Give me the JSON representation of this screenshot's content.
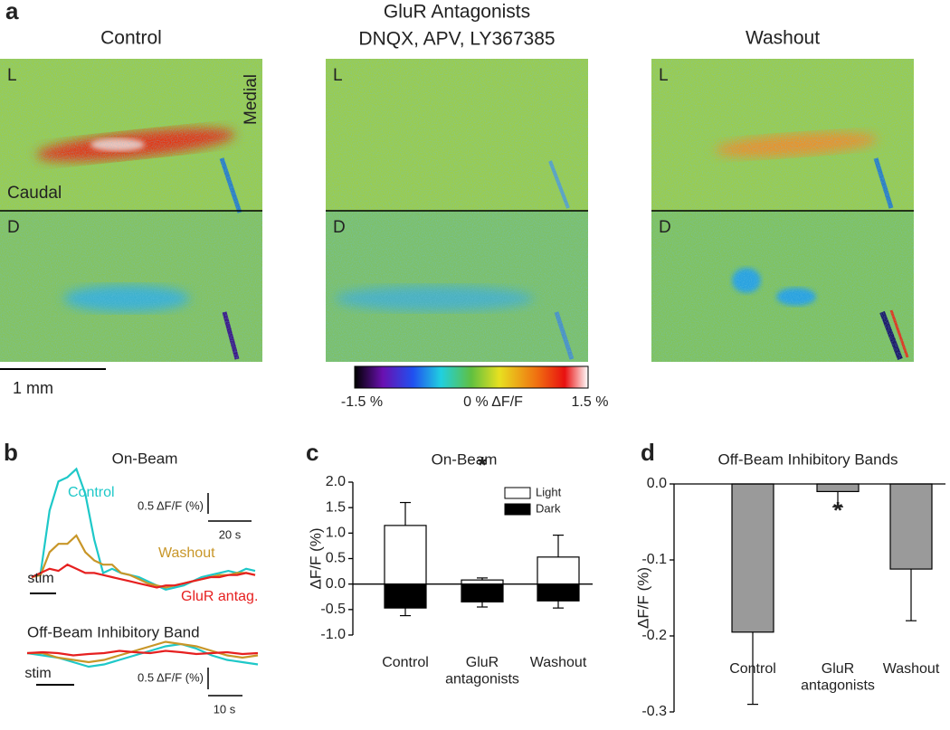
{
  "panel_labels": [
    "a",
    "b",
    "c",
    "d"
  ],
  "panel_a": {
    "titles": [
      [
        "Control"
      ],
      [
        "GluR Antagonists",
        "DNQX, APV, LY367385"
      ],
      [
        "Washout"
      ]
    ],
    "image_labels": {
      "top": "L",
      "bottom": "D",
      "medial": "Medial",
      "caudal": "Caudal"
    },
    "scale_bar": "1 mm",
    "colorbar": {
      "min": "-1.5 %",
      "mid": "0 % ΔF/F",
      "max": "1.5 %"
    }
  },
  "chart_data": [
    {
      "type": "line",
      "title": "On-Beam",
      "stim_label": "stim",
      "scale_y_label": "0.5 ΔF/F (%)",
      "scale_x_label": "20 s",
      "series": [
        {
          "name": "Control",
          "color": "#1ec8c8",
          "values": [
            0,
            0.1,
            1.6,
            2.3,
            2.4,
            2.6,
            2.0,
            0.9,
            0.1,
            0.2,
            0.1,
            0.05,
            0,
            -0.1,
            -0.2,
            -0.3,
            -0.25,
            -0.2,
            -0.1,
            0,
            0.05,
            0.1,
            0.15,
            0.1,
            0.2,
            0.15
          ]
        },
        {
          "name": "Washout",
          "color": "#c89628",
          "values": [
            0,
            0.05,
            0.6,
            0.8,
            0.8,
            1.0,
            0.6,
            0.4,
            0.3,
            0.3,
            0.1,
            0.05,
            -0.05,
            -0.15,
            -0.2,
            -0.25,
            -0.2,
            -0.15,
            -0.1,
            -0.05,
            0,
            0.05,
            0.05,
            0.1,
            0.1,
            0.05
          ]
        },
        {
          "name": "GluR antag.",
          "color": "#e62020",
          "values": [
            0,
            0.1,
            0.2,
            0.15,
            0.3,
            0.2,
            0.1,
            0.1,
            0.05,
            0,
            -0.05,
            -0.1,
            -0.15,
            -0.2,
            -0.25,
            -0.2,
            -0.2,
            -0.15,
            -0.1,
            -0.05,
            0,
            0,
            0.05,
            0.05,
            0.1,
            0.05
          ]
        }
      ]
    },
    {
      "type": "line",
      "title": "Off-Beam Inhibitory Band",
      "stim_label": "stim",
      "scale_y_label": "0.5 ΔF/F (%)",
      "scale_x_label": "10 s",
      "series": [
        {
          "color": "#1ec8c8",
          "values": [
            0,
            -0.05,
            -0.1,
            -0.2,
            -0.3,
            -0.25,
            -0.15,
            -0.05,
            0.05,
            0.15,
            0.2,
            0.1,
            -0.05,
            -0.15,
            -0.2,
            -0.25
          ]
        },
        {
          "color": "#c89628",
          "values": [
            0,
            0,
            -0.1,
            -0.15,
            -0.2,
            -0.15,
            -0.05,
            0.05,
            0.15,
            0.25,
            0.2,
            0.15,
            0.05,
            -0.05,
            -0.1,
            -0.05
          ]
        },
        {
          "color": "#e62020",
          "values": [
            0,
            0.02,
            0,
            -0.05,
            -0.02,
            0,
            0.05,
            0.02,
            0,
            0.05,
            0.02,
            -0.02,
            0,
            0.02,
            -0.02,
            0
          ]
        }
      ]
    },
    {
      "type": "bar",
      "title": "On-Beam",
      "ylabel": "ΔF/F (%)",
      "annotation": "*",
      "categories": [
        "Control",
        "GluR\nantagonists",
        "Washout"
      ],
      "series": [
        {
          "name": "Light",
          "color": "#ffffff",
          "values": [
            1.15,
            0.08,
            0.53
          ],
          "errors": [
            0.45,
            0.04,
            0.43
          ]
        },
        {
          "name": "Dark",
          "color": "#000000",
          "values": [
            -0.47,
            -0.35,
            -0.33
          ],
          "errors": [
            0.15,
            0.1,
            0.14
          ]
        }
      ],
      "ylim": [
        -1.0,
        2.0
      ],
      "yticks": [
        {
          "value": 2,
          "label": "2.0"
        },
        1.5,
        {
          "value": 1,
          "label": "1.0"
        },
        0.5,
        {
          "value": 0,
          "label": "0.0"
        },
        -0.5,
        {
          "value": -1,
          "label": "-1.0"
        }
      ],
      "legend": "top-right"
    },
    {
      "type": "bar",
      "title": "Off-Beam Inhibitory Bands",
      "ylabel": "ΔF/F (%)",
      "annotation": "*",
      "categories": [
        "Control",
        "GluR\nantagonists",
        "Washout"
      ],
      "values": [
        -0.195,
        -0.01,
        -0.112
      ],
      "errors": [
        0.095,
        0.02,
        0.068
      ],
      "color": "#9a9a9a",
      "ylim": [
        -0.3,
        0
      ],
      "yticks": [
        {
          "value": 0,
          "label": "0.0"
        },
        -0.1,
        -0.2,
        -0.3
      ]
    }
  ]
}
